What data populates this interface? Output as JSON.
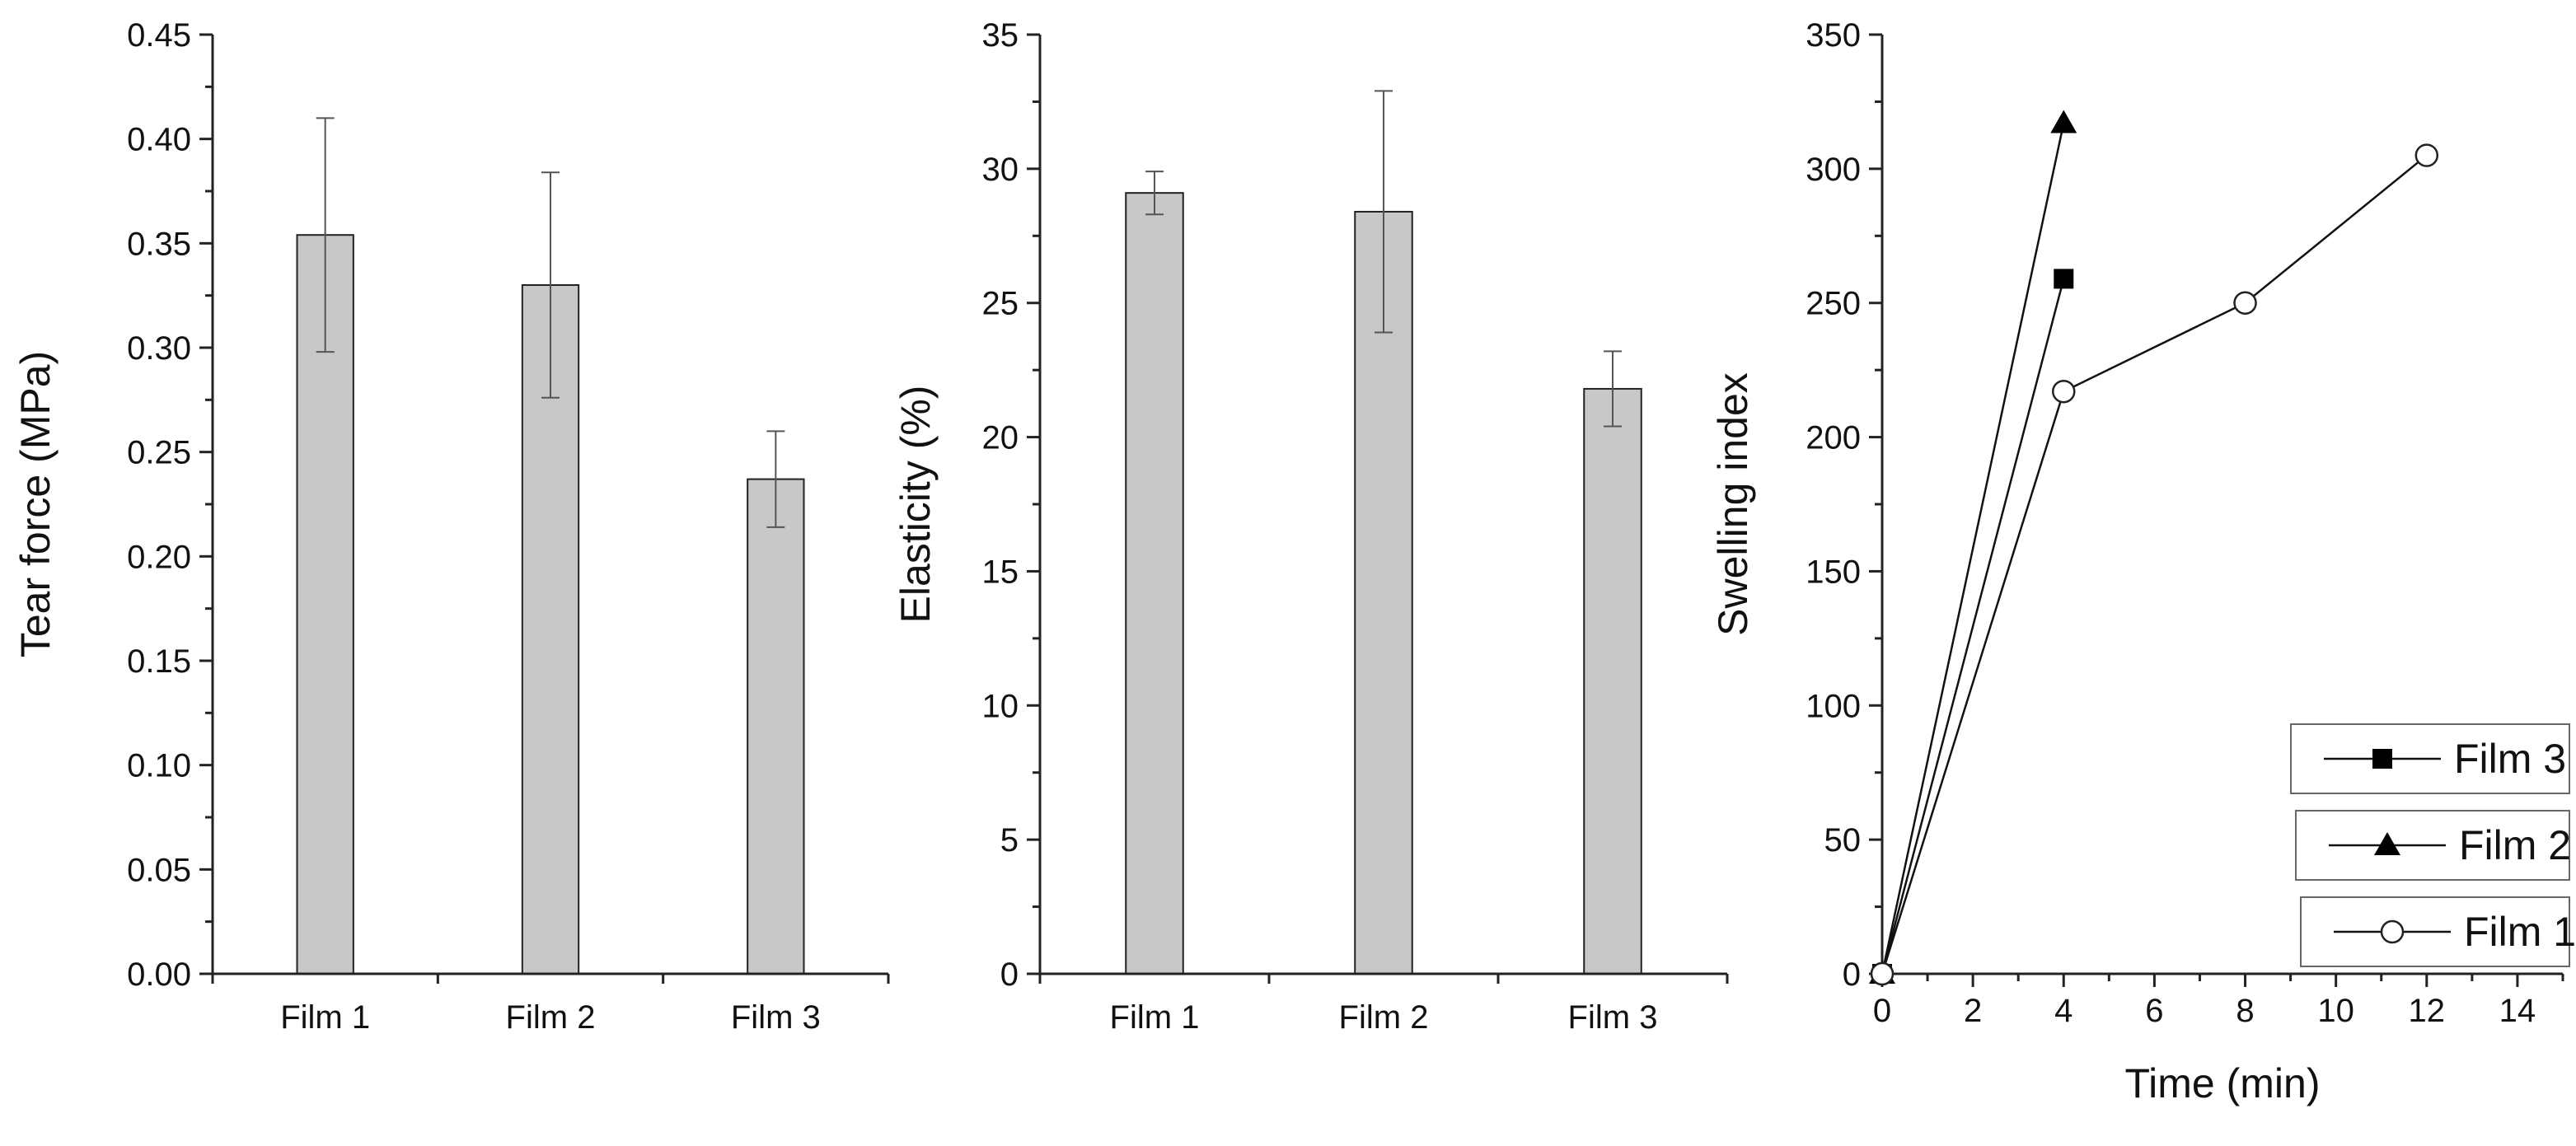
{
  "chart_data": [
    {
      "type": "bar",
      "categories": [
        "Film 1",
        "Film 2",
        "Film 3"
      ],
      "values": [
        0.354,
        0.33,
        0.237
      ],
      "errors": [
        0.056,
        0.054,
        0.023
      ],
      "ylabel": "Tear force (MPa)",
      "xlabel": "",
      "ylim": [
        0,
        0.45
      ],
      "yticks": [
        "0.00",
        "0.05",
        "0.10",
        "0.15",
        "0.20",
        "0.25",
        "0.30",
        "0.35",
        "0.40",
        "0.45"
      ],
      "bar_color": "#c8c8c8"
    },
    {
      "type": "bar",
      "categories": [
        "Film 1",
        "Film 2",
        "Film 3"
      ],
      "values": [
        29.1,
        28.4,
        21.8
      ],
      "errors": [
        0.8,
        4.5,
        1.4
      ],
      "ylabel": "Elasticity (%)",
      "xlabel": "",
      "ylim": [
        0,
        35
      ],
      "yticks": [
        "0",
        "5",
        "10",
        "15",
        "20",
        "25",
        "30",
        "35"
      ],
      "bar_color": "#c8c8c8"
    },
    {
      "type": "line",
      "xlabel": "Time (min)",
      "ylabel": "Swelling index",
      "xlim": [
        0,
        15
      ],
      "ylim": [
        0,
        350
      ],
      "xticks": [
        "0",
        "2",
        "4",
        "6",
        "8",
        "10",
        "12",
        "14"
      ],
      "yticks": [
        "0",
        "50",
        "100",
        "150",
        "200",
        "250",
        "300",
        "350"
      ],
      "legend_position": "bottom-right",
      "series": [
        {
          "name": "Film 3",
          "marker": "square",
          "x": [
            0,
            4
          ],
          "y": [
            0,
            259
          ]
        },
        {
          "name": "Film 2",
          "marker": "triangle",
          "x": [
            0,
            4
          ],
          "y": [
            0,
            317
          ]
        },
        {
          "name": "Film 1",
          "marker": "open-circle",
          "x": [
            0,
            4,
            8,
            12
          ],
          "y": [
            0,
            217,
            250,
            305
          ]
        }
      ]
    }
  ]
}
